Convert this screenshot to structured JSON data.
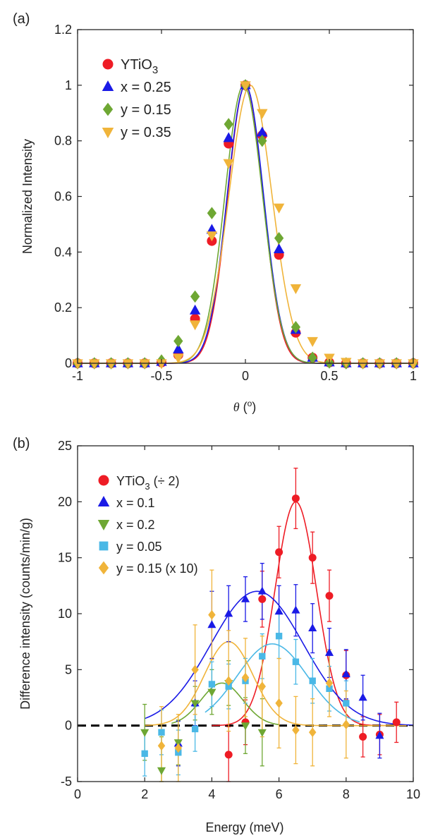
{
  "colors": {
    "red": "#ee1c25",
    "blue": "#1a1ae6",
    "green": "#6ea733",
    "gold": "#f0b43a",
    "cyan": "#4ab8e6",
    "axis": "#262626"
  },
  "chart_data": [
    {
      "panel_label": "(a)",
      "type": "scatter",
      "xlabel_symbol": "θ",
      "xlabel_unit": " (",
      "xlabel_sup": "o",
      "xlabel_close": ")",
      "ylabel": "Normalized Intensity",
      "xlim": [
        -1,
        1
      ],
      "ylim": [
        0,
        1.2
      ],
      "xticks": [
        "-1",
        "-0.5",
        "0",
        "0.5",
        "1"
      ],
      "yticks": [
        "0",
        "0.2",
        "0.4",
        "0.6",
        "0.8",
        "1",
        "1.2"
      ],
      "legend_placement": "top-left",
      "series": [
        {
          "name_main": "YTiO",
          "name_sub": "3",
          "name_tail": "",
          "marker": "circle",
          "color": "#ee1c25",
          "fit_center": 0.0,
          "fit_sigma": 0.105,
          "x": [
            -1,
            -0.9,
            -0.8,
            -0.7,
            -0.6,
            -0.5,
            -0.4,
            -0.3,
            -0.2,
            -0.1,
            0,
            0.1,
            0.2,
            0.3,
            0.4,
            0.5,
            0.6,
            0.7,
            0.8,
            0.9,
            1
          ],
          "y": [
            0,
            0,
            0,
            0,
            0,
            0.003,
            0.03,
            0.16,
            0.44,
            0.79,
            1.0,
            0.82,
            0.39,
            0.11,
            0.02,
            0.003,
            0,
            0,
            0,
            0,
            0
          ]
        },
        {
          "name_main": "x = 0.25",
          "name_sub": "",
          "name_tail": "",
          "marker": "triangle-up",
          "color": "#1a1ae6",
          "fit_center": 0.0,
          "fit_sigma": 0.108,
          "x": [
            -1,
            -0.9,
            -0.8,
            -0.7,
            -0.6,
            -0.5,
            -0.4,
            -0.3,
            -0.2,
            -0.1,
            0,
            0.1,
            0.2,
            0.3,
            0.4,
            0.5,
            0.6,
            0.7,
            0.8,
            0.9,
            1
          ],
          "y": [
            0,
            0,
            0,
            0,
            0,
            0.005,
            0.05,
            0.19,
            0.48,
            0.81,
            1.0,
            0.83,
            0.41,
            0.12,
            0.02,
            0.003,
            0,
            0,
            0,
            0,
            0
          ]
        },
        {
          "name_main": "y = 0.15",
          "name_sub": "",
          "name_tail": "",
          "marker": "diamond",
          "color": "#6ea733",
          "fit_center": -0.01,
          "fit_sigma": 0.112,
          "x": [
            -1,
            -0.9,
            -0.8,
            -0.7,
            -0.6,
            -0.5,
            -0.4,
            -0.3,
            -0.2,
            -0.1,
            0,
            0.1,
            0.2,
            0.3,
            0.4,
            0.5,
            0.6,
            0.7,
            0.8,
            0.9,
            1
          ],
          "y": [
            0,
            0,
            0,
            0,
            0,
            0.01,
            0.08,
            0.24,
            0.54,
            0.86,
            1.0,
            0.8,
            0.45,
            0.13,
            0.02,
            0.003,
            0,
            0,
            0,
            0,
            0
          ]
        },
        {
          "name_main": "y = 0.35",
          "name_sub": "",
          "name_tail": "",
          "marker": "triangle-down",
          "color": "#f0b43a",
          "fit_center": 0.03,
          "fit_sigma": 0.128,
          "x": [
            -1,
            -0.9,
            -0.8,
            -0.7,
            -0.6,
            -0.5,
            -0.4,
            -0.3,
            -0.2,
            -0.1,
            0,
            0.1,
            0.2,
            0.3,
            0.4,
            0.5,
            0.6,
            0.7,
            0.8,
            0.9,
            1
          ],
          "y": [
            0,
            0,
            0,
            0,
            0,
            0,
            0.02,
            0.14,
            0.46,
            0.72,
            1.0,
            0.9,
            0.56,
            0.27,
            0.08,
            0.02,
            0.005,
            0,
            0,
            0,
            0
          ]
        }
      ]
    },
    {
      "panel_label": "(b)",
      "type": "scatter",
      "xlabel": "Energy (meV)",
      "ylabel": "Difference intensity (counts/min/g)",
      "xlim": [
        0,
        10
      ],
      "ylim": [
        -5,
        25
      ],
      "xticks": [
        "0",
        "2",
        "4",
        "6",
        "8",
        "10"
      ],
      "yticks": [
        "-5",
        "0",
        "5",
        "10",
        "15",
        "20",
        "25"
      ],
      "baseline": 0,
      "legend_placement": "top-left",
      "series": [
        {
          "name_main": "YTiO",
          "name_sub": "3",
          "name_tail": " (÷ 2)",
          "marker": "circle",
          "color": "#ee1c25",
          "fit": {
            "amp": 20.0,
            "center": 6.5,
            "sigma": 0.62,
            "xmin": 4.0,
            "xmax": 9.8
          },
          "x": [
            4.5,
            5.0,
            5.5,
            6.0,
            6.5,
            7.0,
            7.5,
            8.0,
            8.5,
            9.0,
            9.5
          ],
          "y": [
            -2.6,
            0.3,
            11.3,
            15.5,
            20.3,
            15.0,
            11.6,
            4.5,
            -1.0,
            -0.8,
            0.3
          ],
          "err": [
            2.5,
            2.0,
            2.5,
            2.3,
            2.7,
            2.3,
            2.3,
            2.2,
            1.8,
            1.8,
            1.8
          ]
        },
        {
          "name_main": "x = 0.1",
          "name_sub": "",
          "name_tail": "",
          "marker": "triangle-up",
          "color": "#1a1ae6",
          "fit": {
            "amp": 12.0,
            "center": 5.35,
            "sigma": 1.38,
            "xmin": 2.0,
            "xmax": 10.0
          },
          "x": [
            3.0,
            3.5,
            4.0,
            4.5,
            5.0,
            5.5,
            6.0,
            6.5,
            7.0,
            7.5,
            8.0,
            8.5,
            9.0
          ],
          "y": [
            -1.6,
            2.0,
            9.0,
            10.0,
            11.3,
            12.0,
            10.2,
            10.3,
            8.7,
            6.5,
            4.6,
            2.5,
            -0.9
          ],
          "err": [
            2.0,
            2.0,
            3.0,
            2.5,
            2.0,
            2.5,
            2.3,
            2.3,
            2.2,
            2.2,
            2.2,
            2.0,
            2.0
          ]
        },
        {
          "name_main": "x = 0.2",
          "name_sub": "",
          "name_tail": "",
          "marker": "triangle-down",
          "color": "#6ea733",
          "fit": {
            "amp": 3.8,
            "center": 4.3,
            "sigma": 0.62,
            "xmin": 2.8,
            "xmax": 6.0
          },
          "x": [
            2.0,
            2.5,
            3.0,
            3.5,
            4.0,
            4.5,
            5.0,
            5.5
          ],
          "y": [
            -0.6,
            -4.0,
            -1.5,
            2.0,
            3.0,
            3.8,
            0.0,
            -0.6
          ],
          "err": [
            2.5,
            3.0,
            2.0,
            1.5,
            2.0,
            2.0,
            2.5,
            3.0
          ]
        },
        {
          "name_main": "y = 0.05",
          "name_sub": "",
          "name_tail": "",
          "marker": "square",
          "color": "#4ab8e6",
          "fit": {
            "amp": 7.3,
            "center": 5.8,
            "sigma": 1.05,
            "xmin": 3.8,
            "xmax": 8.4
          },
          "x": [
            2.0,
            2.5,
            3.0,
            3.5,
            4.0,
            4.5,
            5.0,
            5.5,
            6.0,
            6.5,
            7.0,
            7.5,
            8.0
          ],
          "y": [
            -2.5,
            -0.6,
            -2.4,
            -0.3,
            3.7,
            3.5,
            4.0,
            6.2,
            8.0,
            5.7,
            4.0,
            3.3,
            2.0
          ],
          "err": [
            2.0,
            2.0,
            2.0,
            2.0,
            2.0,
            2.0,
            2.0,
            2.0,
            2.0,
            2.0,
            2.0,
            2.0,
            2.0
          ]
        },
        {
          "name_main": "y = 0.15 (x 10)",
          "name_sub": "",
          "name_tail": "",
          "marker": "diamond",
          "color": "#f0b43a",
          "fit": {
            "amp": 7.5,
            "center": 4.5,
            "sigma": 0.72,
            "xmin": 2.0,
            "xmax": 9.8
          },
          "x": [
            2.5,
            3.0,
            3.5,
            4.0,
            4.5,
            5.0,
            5.5,
            6.0,
            6.5,
            7.0,
            7.5,
            8.0
          ],
          "y": [
            -1.8,
            -2.0,
            5.0,
            9.9,
            4.0,
            4.3,
            3.5,
            2.0,
            -0.4,
            -0.6,
            3.8,
            0.1
          ],
          "err": [
            3.5,
            3.0,
            4.0,
            4.0,
            4.5,
            3.5,
            4.5,
            4.0,
            3.0,
            3.0,
            3.0,
            3.0
          ]
        }
      ]
    }
  ]
}
